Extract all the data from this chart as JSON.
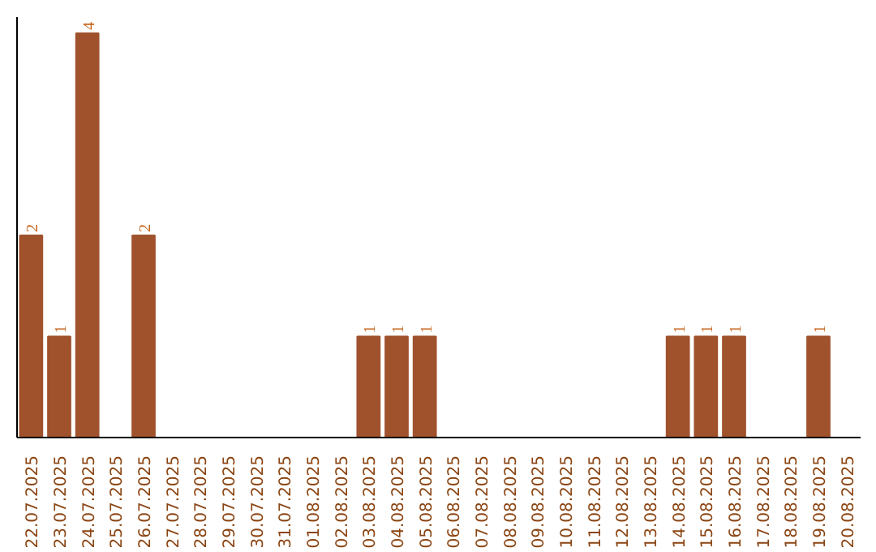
{
  "chart_data": {
    "type": "bar",
    "categories": [
      "22.07.2025",
      "23.07.2025",
      "24.07.2025",
      "25.07.2025",
      "26.07.2025",
      "27.07.2025",
      "28.07.2025",
      "29.07.2025",
      "30.07.2025",
      "31.07.2025",
      "01.08.2025",
      "02.08.2025",
      "03.08.2025",
      "04.08.2025",
      "05.08.2025",
      "06.08.2025",
      "07.08.2025",
      "08.08.2025",
      "09.08.2025",
      "10.08.2025",
      "11.08.2025",
      "12.08.2025",
      "13.08.2025",
      "14.08.2025",
      "15.08.2025",
      "16.08.2025",
      "17.08.2025",
      "18.08.2025",
      "19.08.2025",
      "20.08.2025"
    ],
    "values": [
      2,
      1,
      4,
      null,
      2,
      null,
      null,
      null,
      null,
      null,
      null,
      null,
      1,
      1,
      1,
      null,
      null,
      null,
      null,
      null,
      null,
      null,
      null,
      1,
      1,
      1,
      null,
      null,
      1,
      null
    ],
    "color": "#a0522d",
    "data_labels": true,
    "grid": false
  }
}
